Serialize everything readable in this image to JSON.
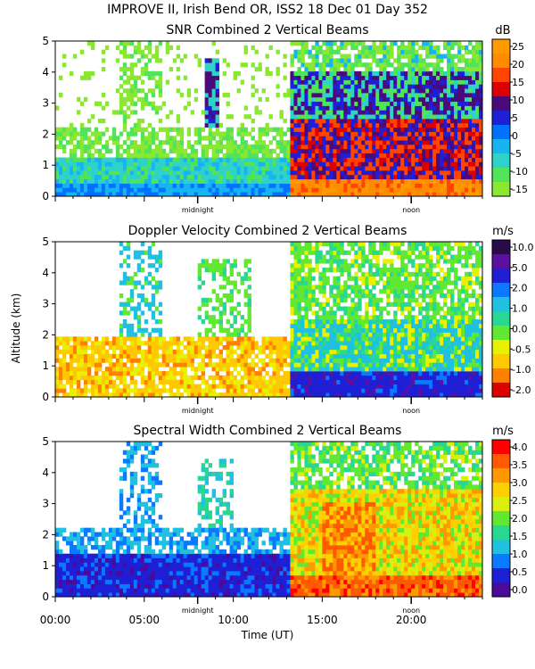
{
  "figure": {
    "title": "IMPROVE II,  Irish Bend OR, ISS2  18 Dec 01 Day 352",
    "xlabel": "Time (UT)",
    "ylabel": "Altitude (km)",
    "midnight_label": "midnight",
    "noon_label": "noon"
  },
  "chart_data": [
    {
      "type": "heatmap",
      "title": "SNR Combined 2 Vertical Beams",
      "unit": "dB",
      "xlim": [
        0,
        24
      ],
      "ylim": [
        0,
        5
      ],
      "y_ticks": [
        "0",
        "1",
        "2",
        "3",
        "4",
        "5"
      ],
      "x_ticks": [],
      "midnight_hour": 8,
      "noon_hour": 20,
      "colorbar": {
        "labels": [
          "25",
          "20",
          "15",
          "10",
          "5",
          "0",
          "-5",
          "-10",
          "-15"
        ],
        "colors": [
          "#ff9a00",
          "#ff8c00",
          "#ff4500",
          "#dd0000",
          "#4a0a7a",
          "#1f1fd6",
          "#0070ff",
          "#17b4f2",
          "#2ed2c8",
          "#51e35a",
          "#8be830"
        ]
      }
    },
    {
      "type": "heatmap",
      "title": "Doppler Velocity Combined 2 Vertical Beams",
      "unit": "m/s",
      "xlim": [
        0,
        24
      ],
      "ylim": [
        0,
        5
      ],
      "y_ticks": [
        "0",
        "1",
        "2",
        "3",
        "4",
        "5"
      ],
      "x_ticks": [],
      "midnight_hour": 8,
      "noon_hour": 20,
      "colorbar": {
        "labels": [
          "10.0",
          "5.0",
          "2.0",
          "1.0",
          "0.0",
          "-0.5",
          "-1.0",
          "-2.0"
        ],
        "colors": [
          "#2b0a4a",
          "#5a10a0",
          "#1f1fd6",
          "#0a78ff",
          "#20c0e0",
          "#28d890",
          "#61e832",
          "#e8f200",
          "#ffc800",
          "#ff7f00",
          "#dd0000"
        ]
      }
    },
    {
      "type": "heatmap",
      "title": "Spectral Width Combined 2 Vertical Beams",
      "unit": "m/s",
      "xlim": [
        0,
        24
      ],
      "ylim": [
        0,
        5
      ],
      "y_ticks": [
        "0",
        "1",
        "2",
        "3",
        "4",
        "5"
      ],
      "x_ticks": [
        "00:00",
        "05:00",
        "10:00",
        "15:00",
        "20:00"
      ],
      "midnight_hour": 8,
      "noon_hour": 20,
      "colorbar": {
        "labels": [
          "4.0",
          "3.5",
          "3.0",
          "2.5",
          "2.0",
          "1.5",
          "1.0",
          "0.5",
          "0.0"
        ],
        "colors": [
          "#ff0000",
          "#ff5a00",
          "#ff9900",
          "#ffd000",
          "#d8ef10",
          "#61e832",
          "#28d890",
          "#20c0e0",
          "#0a78ff",
          "#1f1fd6",
          "#4a0a9a"
        ]
      }
    }
  ]
}
